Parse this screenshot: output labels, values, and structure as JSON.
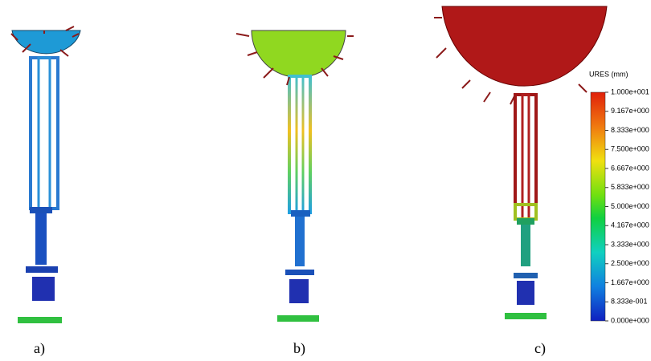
{
  "panels": [
    {
      "label": "a)"
    },
    {
      "label": "b)"
    },
    {
      "label": "c)"
    }
  ],
  "legend": {
    "title": "URES (mm)",
    "lim": [
      0,
      10
    ],
    "ticks": [
      {
        "value": 10,
        "label": "1.000e+001"
      },
      {
        "value": 9.167,
        "label": "9.167e+000"
      },
      {
        "value": 8.333,
        "label": "8.333e+000"
      },
      {
        "value": 7.5,
        "label": "7.500e+000"
      },
      {
        "value": 6.667,
        "label": "6.667e+000"
      },
      {
        "value": 5.833,
        "label": "5.833e+000"
      },
      {
        "value": 5,
        "label": "5.000e+000"
      },
      {
        "value": 4.167,
        "label": "4.167e+000"
      },
      {
        "value": 3.333,
        "label": "3.333e+000"
      },
      {
        "value": 2.5,
        "label": "2.500e+000"
      },
      {
        "value": 1.667,
        "label": "1.667e+000"
      },
      {
        "value": 0.8333,
        "label": "8.333e-001"
      },
      {
        "value": 0,
        "label": "0.000e+000"
      }
    ]
  }
}
